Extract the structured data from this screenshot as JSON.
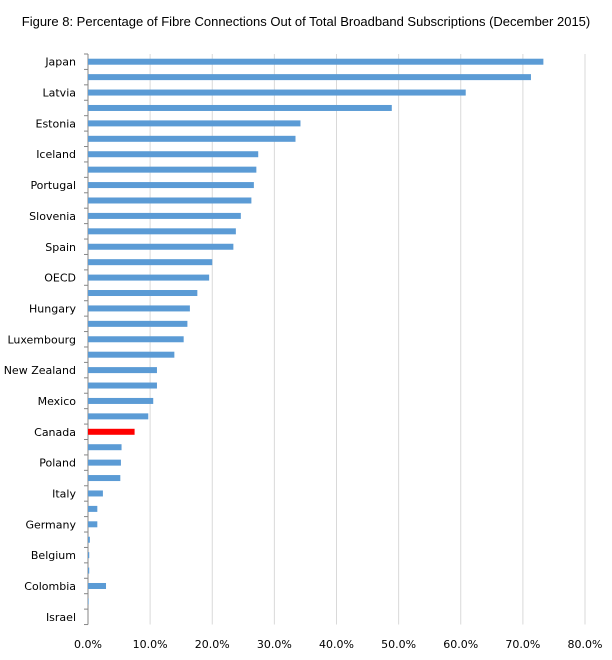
{
  "chart_data": {
    "type": "bar",
    "orientation": "horizontal",
    "title": "Figure 8: Percentage of Fibre Connections Out of Total Broadband Subscriptions (December 2015)",
    "categories": [
      "Japan",
      "",
      "Latvia",
      "",
      "Estonia",
      "",
      "Iceland",
      "",
      "Portugal",
      "",
      "Slovenia",
      "",
      "Spain",
      "",
      "OECD",
      "",
      "Hungary",
      "",
      "Luxembourg",
      "",
      "New Zealand",
      "",
      "Mexico",
      "",
      "Canada",
      "",
      "Poland",
      "",
      "Italy",
      "",
      "Germany",
      "",
      "Belgium",
      "",
      "Colombia",
      "",
      "Israel"
    ],
    "values": [
      73.3,
      71.3,
      60.8,
      48.9,
      34.2,
      33.4,
      27.4,
      27.1,
      26.7,
      26.3,
      24.6,
      23.8,
      23.4,
      20.0,
      19.5,
      17.6,
      16.4,
      16.0,
      15.4,
      13.9,
      11.1,
      11.1,
      10.5,
      9.7,
      7.5,
      5.4,
      5.3,
      5.2,
      2.4,
      1.5,
      1.5,
      0.3,
      0.2,
      0.2,
      2.9,
      0.1,
      0.0
    ],
    "highlight_index": 24,
    "xlim": [
      0,
      80
    ],
    "xticks": [
      "0.0%",
      "10.0%",
      "20.0%",
      "30.0%",
      "40.0%",
      "50.0%",
      "60.0%",
      "70.0%",
      "80.0%"
    ],
    "grid": "vertical major",
    "legend": "none",
    "colors": {
      "bar": "#5B9BD5",
      "highlight": "#FF0000",
      "grid": "#D9D9D9"
    }
  }
}
